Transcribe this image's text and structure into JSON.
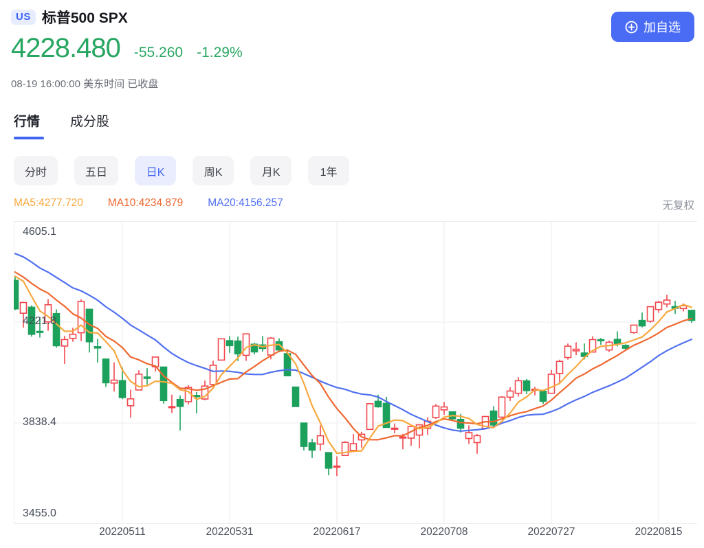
{
  "header": {
    "market_badge": "US",
    "title": "标普500 SPX",
    "add_button_label": "加自选"
  },
  "quote": {
    "price": "4228.480",
    "change": "-55.260",
    "change_pct": "-1.29%",
    "status_line": "08-19 16:00:00 美东时间 已收盘",
    "price_color": "#27a661"
  },
  "tabs": [
    {
      "label": "行情",
      "active": true
    },
    {
      "label": "成分股",
      "active": false
    }
  ],
  "periods": [
    {
      "label": "分时",
      "active": false
    },
    {
      "label": "五日",
      "active": false
    },
    {
      "label": "日K",
      "active": true
    },
    {
      "label": "周K",
      "active": false
    },
    {
      "label": "月K",
      "active": false
    },
    {
      "label": "1年",
      "active": false
    }
  ],
  "indicators": {
    "ma5_label": "MA5:4277.720",
    "ma10_label": "MA10:4234.879",
    "ma20_label": "MA20:4156.257",
    "adjust_label": "无复权",
    "ma5_color": "#f7a83f",
    "ma10_color": "#ef6830",
    "ma20_color": "#5170f0"
  },
  "chart_data": {
    "type": "candlestick",
    "title": "标普500 SPX 日K",
    "ylim": [
      3455.0,
      4605.1
    ],
    "yticks": [
      "4605.1",
      "4221.8",
      "3838.4",
      "3455.0"
    ],
    "xticks": [
      {
        "label": "20220511",
        "candle_index": 13
      },
      {
        "label": "20220531",
        "candle_index": 26
      },
      {
        "label": "20220617",
        "candle_index": 39
      },
      {
        "label": "20220708",
        "candle_index": 52
      },
      {
        "label": "20220727",
        "candle_index": 65
      },
      {
        "label": "20220815",
        "candle_index": 78
      }
    ],
    "grid": true,
    "up_color": "#f2464d",
    "down_color": "#1ca15c",
    "ma_periods": [
      5,
      10,
      20
    ],
    "ma_seed_closes": [
      4543.1,
      4575.5,
      4631.6,
      4602.5,
      4530.4,
      4545.9,
      4582.6,
      4525.1,
      4481.2,
      4500.2,
      4488.3,
      4412.5,
      4397.5,
      4446.6,
      4392.6,
      4391.7,
      4462.2,
      4459.5,
      4393.7
    ],
    "candles_ohlc": [
      [
        4380.1,
        4395.8,
        4267.6,
        4271.8
      ],
      [
        4255.3,
        4299.0,
        4200.8,
        4296.1
      ],
      [
        4278.1,
        4285.4,
        4166.4,
        4175.2
      ],
      [
        4186.5,
        4240.7,
        4162.9,
        4184.0
      ],
      [
        4222.5,
        4308.5,
        4188.6,
        4287.5
      ],
      [
        4253.8,
        4270.0,
        4124.3,
        4131.9
      ],
      [
        4130.6,
        4169.8,
        4062.5,
        4155.4
      ],
      [
        4159.8,
        4200.1,
        4147.1,
        4175.5
      ],
      [
        4181.2,
        4307.7,
        4148.9,
        4300.2
      ],
      [
        4270.4,
        4270.4,
        4106.0,
        4146.9
      ],
      [
        4128.2,
        4157.7,
        4067.9,
        4123.3
      ],
      [
        4081.3,
        4081.3,
        3975.5,
        3991.2
      ],
      [
        3990.1,
        4068.8,
        3958.2,
        4001.1
      ],
      [
        3999.4,
        4049.1,
        3928.8,
        3935.2
      ],
      [
        3903.9,
        3964.8,
        3858.9,
        3930.1
      ],
      [
        3963.9,
        4038.9,
        3963.9,
        4023.9
      ],
      [
        4013.0,
        4046.5,
        3984.0,
        4008.0
      ],
      [
        4052.0,
        4090.7,
        4033.9,
        4088.9
      ],
      [
        4051.0,
        4051.0,
        3911.9,
        3923.7
      ],
      [
        3899.0,
        3946.0,
        3876.6,
        3900.8
      ],
      [
        3927.8,
        3943.4,
        3810.3,
        3901.4
      ],
      [
        3919.4,
        3981.9,
        3909.0,
        3973.8
      ],
      [
        3942.9,
        3955.7,
        3875.1,
        3941.5
      ],
      [
        3929.6,
        3999.3,
        3925.0,
        3978.7
      ],
      [
        3984.6,
        4075.1,
        3984.6,
        4057.8
      ],
      [
        4077.4,
        4158.5,
        4077.4,
        4158.2
      ],
      [
        4151.1,
        4168.3,
        4104.9,
        4132.2
      ],
      [
        4149.8,
        4166.5,
        4073.9,
        4101.2
      ],
      [
        4095.4,
        4177.5,
        4074.4,
        4176.8
      ],
      [
        4137.6,
        4142.7,
        4098.7,
        4108.5
      ],
      [
        4134.7,
        4168.8,
        4109.2,
        4121.4
      ],
      [
        4096.5,
        4164.9,
        4080.2,
        4160.7
      ],
      [
        4147.0,
        4160.1,
        4107.2,
        4115.8
      ],
      [
        4101.7,
        4119.1,
        4017.2,
        4017.8
      ],
      [
        3974.9,
        3974.9,
        3900.2,
        3900.9
      ],
      [
        3838.2,
        3838.2,
        3734.2,
        3749.6
      ],
      [
        3762.8,
        3778.2,
        3705.7,
        3735.5
      ],
      [
        3758.3,
        3829.4,
        3733.1,
        3790.0
      ],
      [
        3725.9,
        3725.9,
        3639.8,
        3666.8
      ],
      [
        3672.6,
        3711.9,
        3636.9,
        3674.8
      ],
      [
        3715.3,
        3769.0,
        3715.3,
        3764.8
      ],
      [
        3734.3,
        3796.7,
        3727.1,
        3759.9
      ],
      [
        3774.3,
        3804.9,
        3743.5,
        3795.7
      ],
      [
        3814.1,
        3913.7,
        3814.1,
        3911.7
      ],
      [
        3920.8,
        3945.9,
        3896.8,
        3900.1
      ],
      [
        3913.1,
        3938.0,
        3820.1,
        3821.6
      ],
      [
        3817.3,
        3836.5,
        3799.4,
        3818.8
      ],
      [
        3785.4,
        3797.8,
        3738.7,
        3785.4
      ],
      [
        3781.0,
        3829.8,
        3752.1,
        3825.3
      ],
      [
        3792.6,
        3834.3,
        3742.1,
        3831.4
      ],
      [
        3818.0,
        3860.7,
        3792.8,
        3845.1
      ],
      [
        3859.1,
        3910.3,
        3853.8,
        3902.6
      ],
      [
        3888.3,
        3918.5,
        3869.3,
        3899.4
      ],
      [
        3880.9,
        3880.9,
        3847.2,
        3854.4
      ],
      [
        3852.0,
        3873.4,
        3802.4,
        3818.8
      ],
      [
        3779.7,
        3829.4,
        3759.1,
        3801.8
      ],
      [
        3764.0,
        3796.4,
        3721.6,
        3790.4
      ],
      [
        3818.1,
        3863.8,
        3817.2,
        3863.2
      ],
      [
        3883.8,
        3902.4,
        3818.6,
        3830.9
      ],
      [
        3860.7,
        3939.8,
        3860.7,
        3936.7
      ],
      [
        3936.5,
        3974.1,
        3922.1,
        3959.9
      ],
      [
        3951.3,
        4012.4,
        3938.6,
        3999.0
      ],
      [
        3998.3,
        4005.9,
        3948.1,
        3961.6
      ],
      [
        3965.7,
        3975.6,
        3943.4,
        3966.8
      ],
      [
        3959.1,
        3960.6,
        3910.7,
        3921.1
      ],
      [
        3951.4,
        4039.6,
        3951.4,
        4023.6
      ],
      [
        4026.6,
        4078.9,
        3993.0,
        4072.4
      ],
      [
        4087.3,
        4140.2,
        4079.2,
        4130.3
      ],
      [
        4112.4,
        4144.9,
        4096.0,
        4118.6
      ],
      [
        4104.2,
        4140.5,
        4079.8,
        4091.2
      ],
      [
        4107.9,
        4167.7,
        4107.3,
        4155.2
      ],
      [
        4154.9,
        4161.3,
        4135.4,
        4151.9
      ],
      [
        4115.9,
        4151.6,
        4107.7,
        4145.2
      ],
      [
        4155.9,
        4186.6,
        4129.0,
        4140.1
      ],
      [
        4133.1,
        4137.3,
        4112.1,
        4122.5
      ],
      [
        4181.9,
        4211.0,
        4177.3,
        4210.2
      ],
      [
        4227.8,
        4257.9,
        4201.4,
        4207.3
      ],
      [
        4225.0,
        4280.5,
        4219.8,
        4280.2
      ],
      [
        4269.4,
        4301.8,
        4256.9,
        4297.1
      ],
      [
        4290.3,
        4325.3,
        4277.8,
        4305.2
      ],
      [
        4280.4,
        4302.2,
        4253.1,
        4274.0
      ],
      [
        4273.0,
        4292.8,
        4262.0,
        4283.7
      ],
      [
        4266.3,
        4266.3,
        4218.7,
        4228.5
      ]
    ]
  }
}
